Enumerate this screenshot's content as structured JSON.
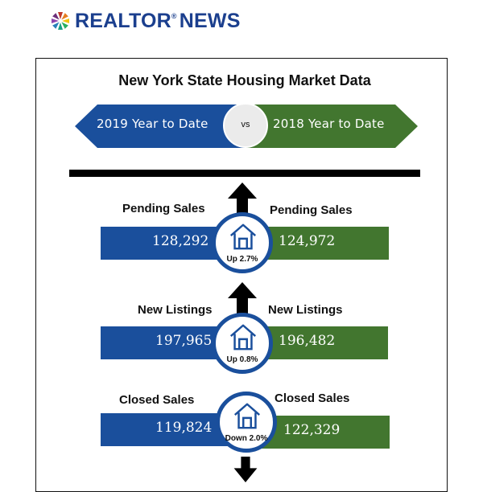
{
  "header": {
    "brand": "REALTOR",
    "brand_mark": "®",
    "brand_suffix": "NEWS"
  },
  "infographic": {
    "title": "New York State Housing Market Data",
    "compare": {
      "left": "2019 Year to Date",
      "vs": "vs",
      "right": "2018 Year to Date"
    },
    "colors": {
      "current_year": "#1a4f9c",
      "prior_year": "#42762f",
      "arrow": "#000000"
    },
    "metrics": [
      {
        "label_left": "Pending Sales",
        "label_right": "Pending Sales",
        "value_2019": "128,292",
        "value_2018": "124,972",
        "change": "Up 2.7%",
        "direction": "up",
        "icon": "house-icon"
      },
      {
        "label_left": "New Listings",
        "label_right": "New Listings",
        "value_2019": "197,965",
        "value_2018": "196,482",
        "change": "Up 0.8%",
        "direction": "up",
        "icon": "house-icon"
      },
      {
        "label_left": "Closed Sales",
        "label_right": "Closed Sales",
        "value_2019": "119,824",
        "value_2018": "122,329",
        "change": "Down 2.0%",
        "direction": "down",
        "icon": "house-icon"
      }
    ]
  }
}
